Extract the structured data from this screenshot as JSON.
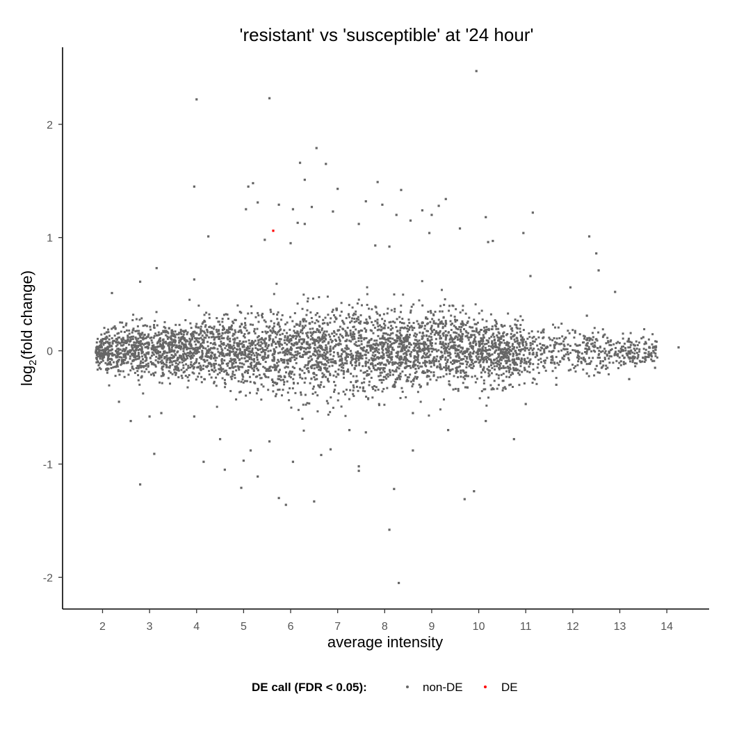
{
  "chart_data": {
    "type": "scatter",
    "title": "'resistant' vs 'susceptible' at '24 hour'",
    "xlabel": "average intensity",
    "ylabel_main": "log",
    "ylabel_sub": "2",
    "ylabel_rest": "(fold change)",
    "xlim": [
      1.15,
      14.9
    ],
    "ylim": [
      -2.28,
      2.68
    ],
    "xticks": [
      2,
      3,
      4,
      5,
      6,
      7,
      8,
      9,
      10,
      11,
      12,
      13,
      14
    ],
    "yticks": [
      -2,
      -1,
      0,
      1,
      2
    ],
    "grid": false,
    "legend": {
      "title": "DE call (FDR < 0.05):",
      "position": "bottom",
      "entries": [
        {
          "label": "non-DE",
          "color": "#666666"
        },
        {
          "label": "DE",
          "color": "#ff0000"
        }
      ]
    },
    "series": [
      {
        "name": "non-DE",
        "color": "#666666",
        "points": [
          [
            9.95,
            2.47
          ],
          [
            4.0,
            2.22
          ],
          [
            5.55,
            2.23
          ],
          [
            6.55,
            1.79
          ],
          [
            6.2,
            1.66
          ],
          [
            6.75,
            1.65
          ],
          [
            6.3,
            1.51
          ],
          [
            5.2,
            1.48
          ],
          [
            5.1,
            1.45
          ],
          [
            3.95,
            1.45
          ],
          [
            7.0,
            1.43
          ],
          [
            7.85,
            1.49
          ],
          [
            8.35,
            1.42
          ],
          [
            7.6,
            1.32
          ],
          [
            7.95,
            1.29
          ],
          [
            5.3,
            1.31
          ],
          [
            9.3,
            1.34
          ],
          [
            5.05,
            1.25
          ],
          [
            5.75,
            1.29
          ],
          [
            6.05,
            1.25
          ],
          [
            6.45,
            1.27
          ],
          [
            6.9,
            1.23
          ],
          [
            8.8,
            1.24
          ],
          [
            9.15,
            1.28
          ],
          [
            8.25,
            1.2
          ],
          [
            10.15,
            1.18
          ],
          [
            11.15,
            1.22
          ],
          [
            8.55,
            1.15
          ],
          [
            9.0,
            1.2
          ],
          [
            7.45,
            1.12
          ],
          [
            6.15,
            1.13
          ],
          [
            6.3,
            1.12
          ],
          [
            9.6,
            1.08
          ],
          [
            10.95,
            1.04
          ],
          [
            12.35,
            1.01
          ],
          [
            4.25,
            1.01
          ],
          [
            6.0,
            0.95
          ],
          [
            5.45,
            0.98
          ],
          [
            7.8,
            0.93
          ],
          [
            8.1,
            0.92
          ],
          [
            8.95,
            1.04
          ],
          [
            10.2,
            0.96
          ],
          [
            10.3,
            0.97
          ],
          [
            12.5,
            0.86
          ],
          [
            3.95,
            0.63
          ],
          [
            3.15,
            0.73
          ],
          [
            11.1,
            0.66
          ],
          [
            11.95,
            0.56
          ],
          [
            12.9,
            0.52
          ],
          [
            12.3,
            0.31
          ],
          [
            12.55,
            0.71
          ],
          [
            2.2,
            0.51
          ],
          [
            2.8,
            0.61
          ],
          [
            13.5,
            0.12
          ],
          [
            14.25,
            0.03
          ],
          [
            13.75,
            -0.15
          ],
          [
            13.2,
            -0.25
          ],
          [
            12.3,
            -0.2
          ],
          [
            11.65,
            -0.3
          ],
          [
            10.75,
            -0.78
          ],
          [
            10.15,
            -0.62
          ],
          [
            9.9,
            -1.24
          ],
          [
            9.7,
            -1.31
          ],
          [
            8.6,
            -0.88
          ],
          [
            8.2,
            -1.22
          ],
          [
            8.1,
            -1.58
          ],
          [
            8.3,
            -2.05
          ],
          [
            7.45,
            -1.02
          ],
          [
            7.45,
            -1.06
          ],
          [
            6.5,
            -1.33
          ],
          [
            5.9,
            -1.36
          ],
          [
            5.75,
            -1.3
          ],
          [
            5.3,
            -1.11
          ],
          [
            4.95,
            -1.21
          ],
          [
            5.0,
            -0.97
          ],
          [
            4.6,
            -1.05
          ],
          [
            4.15,
            -0.98
          ],
          [
            3.1,
            -0.91
          ],
          [
            2.8,
            -1.18
          ],
          [
            2.6,
            -0.62
          ],
          [
            3.0,
            -0.58
          ],
          [
            2.35,
            -0.45
          ],
          [
            3.25,
            -0.55
          ],
          [
            11.0,
            -0.47
          ],
          [
            12.15,
            0.05
          ],
          [
            6.85,
            -0.87
          ],
          [
            6.25,
            -0.6
          ],
          [
            4.5,
            -0.78
          ],
          [
            5.55,
            -0.8
          ],
          [
            7.25,
            -0.7
          ],
          [
            7.6,
            -0.72
          ],
          [
            6.65,
            -0.92
          ],
          [
            9.35,
            -0.7
          ],
          [
            8.6,
            -0.55
          ],
          [
            3.95,
            -0.58
          ],
          [
            5.15,
            -0.88
          ],
          [
            6.05,
            -0.98
          ]
        ]
      },
      {
        "name": "DE",
        "color": "#ff0000",
        "points": [
          [
            5.63,
            1.06
          ]
        ]
      }
    ]
  }
}
